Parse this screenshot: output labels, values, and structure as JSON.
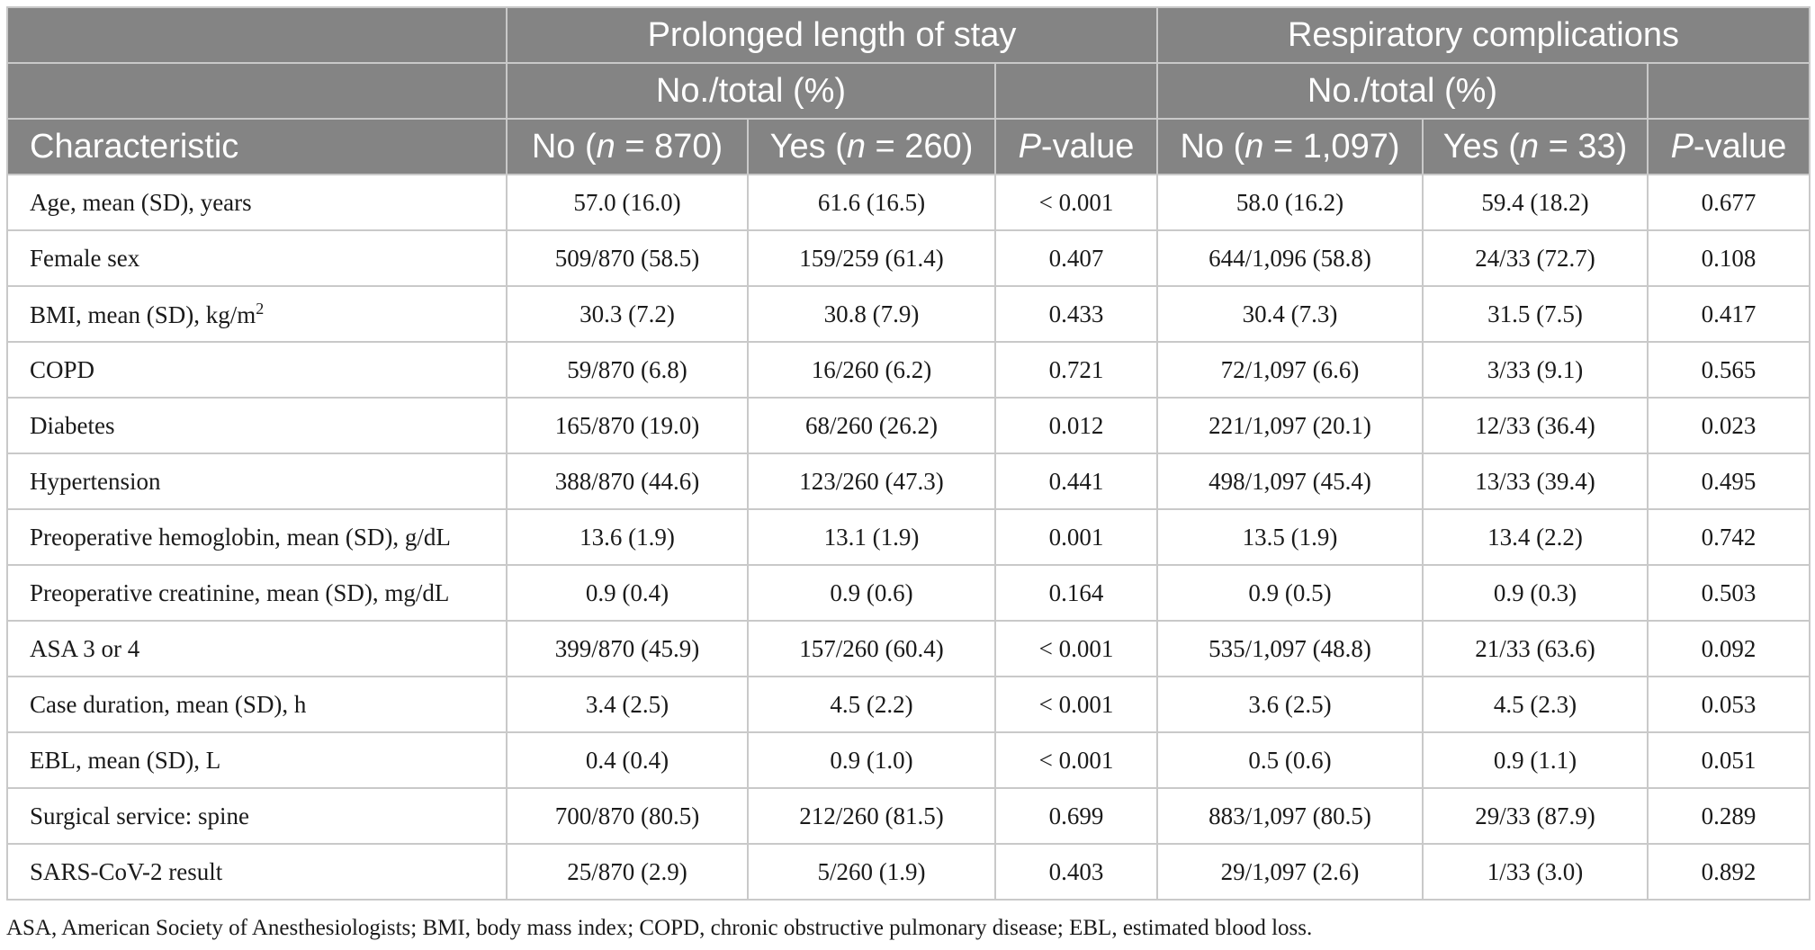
{
  "header": {
    "group1": "Prolonged length of stay",
    "group2": "Respiratory complications",
    "sub1": "No./total (%)",
    "sub2": "No./total (%)",
    "col_characteristic": "Characteristic",
    "col_no1": {
      "pre": "No (",
      "n": "n",
      "post": " = 870)"
    },
    "col_yes1": {
      "pre": "Yes (",
      "n": "n",
      "post": " = 260)"
    },
    "col_p1": {
      "p": "P",
      "post": "-value"
    },
    "col_no2": {
      "pre": "No (",
      "n": "n",
      "post": " = 1,097)"
    },
    "col_yes2": {
      "pre": "Yes (",
      "n": "n",
      "post": " = 33)"
    },
    "col_p2": {
      "p": "P",
      "post": "-value"
    }
  },
  "rows": [
    {
      "label": "Age, mean (SD), years",
      "sup": "",
      "cells": [
        "57.0 (16.0)",
        "61.6 (16.5)",
        "< 0.001",
        "58.0 (16.2)",
        "59.4 (18.2)",
        "0.677"
      ]
    },
    {
      "label": "Female sex",
      "sup": "",
      "cells": [
        "509/870 (58.5)",
        "159/259 (61.4)",
        "0.407",
        "644/1,096 (58.8)",
        "24/33 (72.7)",
        "0.108"
      ]
    },
    {
      "label": "BMI, mean (SD), kg/m",
      "sup": "2",
      "cells": [
        "30.3 (7.2)",
        "30.8 (7.9)",
        "0.433",
        "30.4 (7.3)",
        "31.5 (7.5)",
        "0.417"
      ]
    },
    {
      "label": "COPD",
      "sup": "",
      "cells": [
        "59/870 (6.8)",
        "16/260 (6.2)",
        "0.721",
        "72/1,097 (6.6)",
        "3/33 (9.1)",
        "0.565"
      ]
    },
    {
      "label": "Diabetes",
      "sup": "",
      "cells": [
        "165/870 (19.0)",
        "68/260 (26.2)",
        "0.012",
        "221/1,097 (20.1)",
        "12/33 (36.4)",
        "0.023"
      ]
    },
    {
      "label": "Hypertension",
      "sup": "",
      "cells": [
        "388/870 (44.6)",
        "123/260 (47.3)",
        "0.441",
        "498/1,097 (45.4)",
        "13/33 (39.4)",
        "0.495"
      ]
    },
    {
      "label": "Preoperative hemoglobin, mean (SD), g/dL",
      "sup": "",
      "cells": [
        "13.6 (1.9)",
        "13.1 (1.9)",
        "0.001",
        "13.5 (1.9)",
        "13.4 (2.2)",
        "0.742"
      ]
    },
    {
      "label": "Preoperative creatinine, mean (SD), mg/dL",
      "sup": "",
      "cells": [
        "0.9 (0.4)",
        "0.9 (0.6)",
        "0.164",
        "0.9 (0.5)",
        "0.9 (0.3)",
        "0.503"
      ]
    },
    {
      "label": "ASA 3 or 4",
      "sup": "",
      "cells": [
        "399/870 (45.9)",
        "157/260 (60.4)",
        "< 0.001",
        "535/1,097 (48.8)",
        "21/33 (63.6)",
        "0.092"
      ]
    },
    {
      "label": "Case duration, mean (SD), h",
      "sup": "",
      "cells": [
        "3.4 (2.5)",
        "4.5 (2.2)",
        "< 0.001",
        "3.6 (2.5)",
        "4.5 (2.3)",
        "0.053"
      ]
    },
    {
      "label": "EBL, mean (SD), L",
      "sup": "",
      "cells": [
        "0.4 (0.4)",
        "0.9 (1.0)",
        "< 0.001",
        "0.5 (0.6)",
        "0.9 (1.1)",
        "0.051"
      ]
    },
    {
      "label": "Surgical service: spine",
      "sup": "",
      "cells": [
        "700/870 (80.5)",
        "212/260 (81.5)",
        "0.699",
        "883/1,097 (80.5)",
        "29/33 (87.9)",
        "0.289"
      ]
    },
    {
      "label": "SARS-CoV-2 result",
      "sup": "",
      "cells": [
        "25/870 (2.9)",
        "5/260 (1.9)",
        "0.403",
        "29/1,097 (2.6)",
        "1/33 (3.0)",
        "0.892"
      ]
    }
  ],
  "footnote": "ASA, American Society of Anesthesiologists; BMI, body mass index; COPD, chronic obstructive pulmonary disease; EBL, estimated blood loss."
}
